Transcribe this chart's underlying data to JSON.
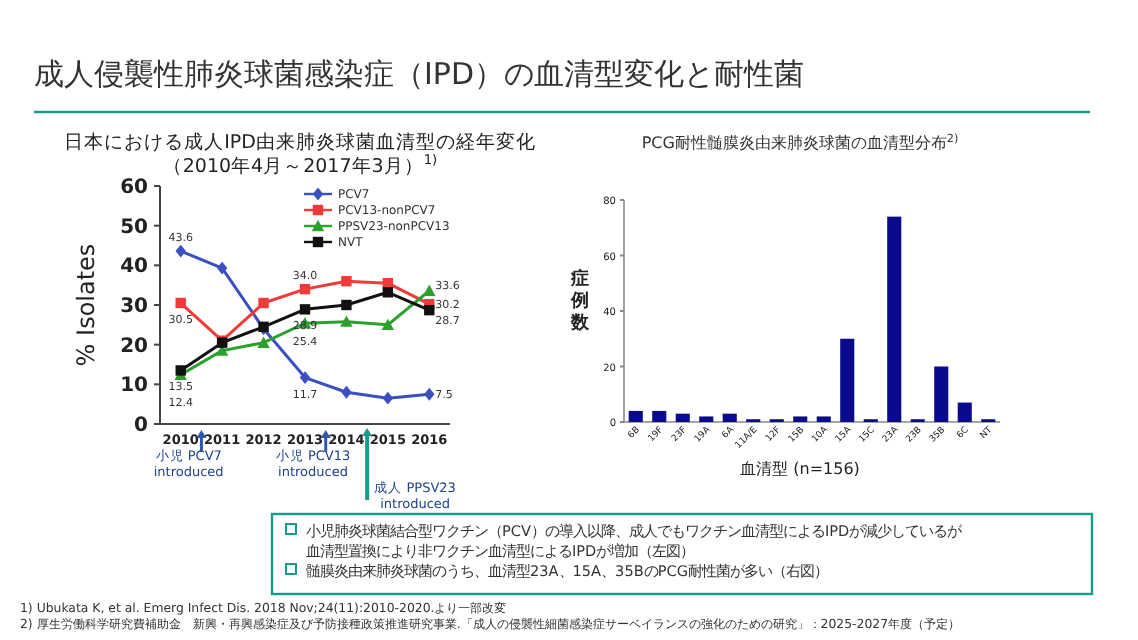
{
  "chart_data": [
    {
      "type": "line",
      "title": "日本における成人IPD由来肺炎球菌血清型の経年変化（2010年4月～2017年3月）$^{1)}$",
      "ylabel": "% Isolates",
      "categories": [
        "2010",
        "2011",
        "2012",
        "2013",
        "2014",
        "2015",
        "2016"
      ],
      "ylim": [
        0,
        60
      ],
      "yticks": [
        0,
        10,
        20,
        30,
        40,
        50,
        60
      ],
      "legend": "top right",
      "grid": false,
      "series": [
        {
          "name": "PCV7",
          "color": "#3a4fc0",
          "marker": "diamond",
          "values": [
            43.6,
            39.3,
            24,
            11.7,
            8,
            6.5,
            7.5
          ],
          "value_labels": [
            "43.6",
            null,
            null,
            "11.7",
            null,
            null,
            "7.5"
          ]
        },
        {
          "name": "PCV13-nonPCV7",
          "color": "#f03a3a",
          "marker": "square",
          "values": [
            30.5,
            21,
            30.5,
            34.0,
            36,
            35.5,
            30.2
          ],
          "value_labels": [
            "30.5",
            null,
            null,
            "34.0",
            null,
            null,
            "30.2"
          ]
        },
        {
          "name": "PPSV23-nonPCV13",
          "color": "#2ca02c",
          "marker": "triangle",
          "values": [
            12.4,
            18.5,
            20.5,
            25.4,
            25.8,
            25,
            33.6
          ],
          "value_labels": [
            "12.4",
            null,
            null,
            "25.4",
            null,
            null,
            "33.6"
          ]
        },
        {
          "name": "NVT",
          "color": "#111111",
          "marker": "square",
          "values": [
            13.5,
            20.5,
            24.5,
            28.9,
            30,
            33.2,
            28.7
          ],
          "value_labels": [
            "13.5",
            null,
            null,
            "28.9",
            null,
            null,
            "28.7"
          ]
        }
      ],
      "annotations": [
        "小児 PCV7\nintroduced",
        "小児 PCV13\nintroduced",
        "成人 PPSV23\nintroduced"
      ]
    },
    {
      "type": "bar",
      "title": "PCG耐性髄膜炎由来肺炎球菌の血清型分布$^{2)}$",
      "ylabel": "症例数",
      "xlabel": "血清型 (n=156)",
      "categories": [
        "6B",
        "19F",
        "23F",
        "19A",
        "6A",
        "11A/E",
        "12F",
        "15B",
        "10A",
        "15A",
        "15C",
        "23A",
        "23B",
        "35B",
        "6C",
        "NT"
      ],
      "values": [
        4,
        4,
        3,
        2,
        3,
        1,
        1,
        2,
        2,
        30,
        1,
        74,
        1,
        20,
        7,
        1
      ],
      "color": "#0a0a8c",
      "ylim": [
        0,
        80
      ],
      "yticks": [
        0,
        20,
        40,
        60,
        80
      ],
      "grid": false
    },
    {
      "type": "other",
      "title": "成人侵襲性肺炎球菌感染症（IPD）の血清型変化と耐性菌",
      "annotations": [
        "小児肺炎球菌結合型ワクチン（PCV）の導入以降、成人でもワクチン血清型によるIPDが減少しているが血清型置換により非ワクチン血清型によるIPDが増加（左図）",
        "髄膜炎由来肺炎球菌のうち、血清型23A、15A、35BのPCG耐性菌が多い（右図）",
        "1) Ubukata K, et al. Emerg Infect Dis. 2018 Nov;24(11):2010-2020.より一部改変",
        "2) 厚生労働科学研究費補助金　新興・再興感染症及び予防接種政策推進研究事業.「成人の侵襲性細菌感染症サーベイランスの強化のための研究」：2025-2027年度（予定）"
      ]
    }
  ]
}
